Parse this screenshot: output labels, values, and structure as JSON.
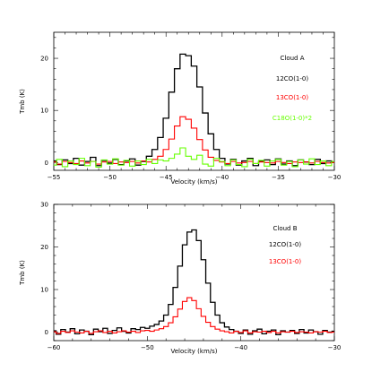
{
  "figure": {
    "panels": [
      {
        "id": "A"
      },
      {
        "id": "B"
      }
    ]
  },
  "chart_data": [
    {
      "type": "line",
      "step": true,
      "title": "Cloud A",
      "xlabel": "Velocity (km/s)",
      "ylabel": "Tmb (K)",
      "xlim": [
        -55,
        -30
      ],
      "ylim": [
        -1.5,
        25
      ],
      "xticks": [
        -55,
        -50,
        -45,
        -40,
        -35,
        -30
      ],
      "yticks": [
        0,
        10,
        20
      ],
      "grid": false,
      "legend": "upper-right, inside",
      "series": [
        {
          "name": "12CO(1-0)",
          "color": "#000000",
          "x": [
            -55.0,
            -54.5,
            -54.0,
            -53.5,
            -53.0,
            -52.5,
            -52.0,
            -51.5,
            -51.0,
            -50.5,
            -50.0,
            -49.5,
            -49.0,
            -48.5,
            -48.0,
            -47.5,
            -47.0,
            -46.5,
            -46.0,
            -45.5,
            -45.0,
            -44.5,
            -44.0,
            -43.5,
            -43.0,
            -42.5,
            -42.0,
            -41.5,
            -41.0,
            -40.5,
            -40.0,
            -39.5,
            -39.0,
            -38.5,
            -38.0,
            -37.5,
            -37.0,
            -36.5,
            -36.0,
            -35.5,
            -35.0,
            -34.5,
            -34.0,
            -33.5,
            -33.0,
            -32.5,
            -32.0,
            -31.5,
            -31.0,
            -30.5,
            -30.0
          ],
          "y": [
            0.3,
            -0.4,
            0.5,
            -0.2,
            0.8,
            -0.5,
            0.2,
            1.0,
            -0.6,
            0.4,
            -0.1,
            0.6,
            -0.4,
            0.3,
            0.7,
            -0.5,
            0.2,
            1.2,
            2.5,
            4.8,
            8.5,
            13.5,
            18.0,
            20.8,
            20.5,
            18.5,
            14.5,
            9.5,
            5.5,
            2.5,
            0.8,
            -0.3,
            0.6,
            -0.5,
            0.3,
            0.8,
            -0.6,
            0.2,
            0.5,
            -0.4,
            0.7,
            -0.3,
            0.3,
            -0.6,
            0.5,
            0.1,
            -0.4,
            0.6,
            -0.2,
            0.3,
            0.0
          ]
        },
        {
          "name": "13CO(1-0)",
          "color": "#ff0000",
          "x": [
            -55.0,
            -54.5,
            -54.0,
            -53.5,
            -53.0,
            -52.5,
            -52.0,
            -51.5,
            -51.0,
            -50.5,
            -50.0,
            -49.5,
            -49.0,
            -48.5,
            -48.0,
            -47.5,
            -47.0,
            -46.5,
            -46.0,
            -45.5,
            -45.0,
            -44.5,
            -44.0,
            -43.5,
            -43.0,
            -42.5,
            -42.0,
            -41.5,
            -41.0,
            -40.5,
            -40.0,
            -39.5,
            -39.0,
            -38.5,
            -38.0,
            -37.5,
            -37.0,
            -36.5,
            -36.0,
            -35.5,
            -35.0,
            -34.5,
            -34.0,
            -33.5,
            -33.0,
            -32.5,
            -32.0,
            -31.5,
            -31.0,
            -30.5,
            -30.0
          ],
          "y": [
            0.1,
            -0.3,
            0.2,
            0.0,
            -0.2,
            0.3,
            -0.1,
            0.2,
            -0.3,
            0.1,
            0.2,
            -0.2,
            0.1,
            0.0,
            0.2,
            -0.1,
            0.3,
            0.1,
            0.6,
            1.2,
            2.5,
            4.5,
            7.0,
            8.8,
            8.3,
            6.6,
            4.4,
            2.4,
            1.0,
            0.4,
            0.1,
            -0.2,
            0.2,
            -0.1,
            0.0,
            0.2,
            -0.2,
            0.1,
            0.0,
            -0.1,
            0.2,
            0.0,
            -0.2,
            0.1,
            0.0,
            0.1,
            -0.1,
            0.2,
            0.0,
            -0.1,
            0.0
          ]
        },
        {
          "name": "C18O(1-0)*2",
          "color": "#66ff00",
          "x": [
            -55.0,
            -54.5,
            -54.0,
            -53.5,
            -53.0,
            -52.5,
            -52.0,
            -51.5,
            -51.0,
            -50.5,
            -50.0,
            -49.5,
            -49.0,
            -48.5,
            -48.0,
            -47.5,
            -47.0,
            -46.5,
            -46.0,
            -45.5,
            -45.0,
            -44.5,
            -44.0,
            -43.5,
            -43.0,
            -42.5,
            -42.0,
            -41.5,
            -41.0,
            -40.5,
            -40.0,
            -39.5,
            -39.0,
            -38.5,
            -38.0,
            -37.5,
            -37.0,
            -36.5,
            -36.0,
            -35.5,
            -35.0,
            -34.5,
            -34.0,
            -33.5,
            -33.0,
            -32.5,
            -32.0,
            -31.5,
            -31.0,
            -30.5,
            -30.0
          ],
          "y": [
            -0.5,
            0.6,
            -0.8,
            0.3,
            -0.4,
            0.8,
            -0.6,
            0.2,
            -0.9,
            0.5,
            -0.3,
            0.7,
            -0.5,
            0.4,
            -0.7,
            0.3,
            -0.4,
            0.6,
            -0.2,
            0.5,
            0.3,
            0.8,
            1.6,
            2.8,
            1.2,
            0.6,
            1.4,
            -0.3,
            -0.7,
            0.8,
            0.2,
            -0.6,
            0.5,
            -0.4,
            -0.8,
            0.6,
            -0.2,
            0.4,
            -0.7,
            0.3,
            0.6,
            -0.5,
            0.2,
            -0.8,
            0.5,
            -0.3,
            0.7,
            -0.4,
            0.3,
            -0.6,
            0.2
          ]
        }
      ]
    },
    {
      "type": "line",
      "step": true,
      "title": "Cloud B",
      "xlabel": "Velocity (km/s)",
      "ylabel": "Tmb (K)",
      "xlim": [
        -60,
        -30
      ],
      "ylim": [
        -2,
        30
      ],
      "xticks": [
        -60,
        -50,
        -40,
        -30
      ],
      "yticks": [
        0,
        10,
        20,
        30
      ],
      "grid": false,
      "legend": "upper-right, inside",
      "series": [
        {
          "name": "12CO(1-0)",
          "color": "#000000",
          "x": [
            -60.0,
            -59.5,
            -59.0,
            -58.5,
            -58.0,
            -57.5,
            -57.0,
            -56.5,
            -56.0,
            -55.5,
            -55.0,
            -54.5,
            -54.0,
            -53.5,
            -53.0,
            -52.5,
            -52.0,
            -51.5,
            -51.0,
            -50.5,
            -50.0,
            -49.5,
            -49.0,
            -48.5,
            -48.0,
            -47.5,
            -47.0,
            -46.5,
            -46.0,
            -45.5,
            -45.0,
            -44.5,
            -44.0,
            -43.5,
            -43.0,
            -42.5,
            -42.0,
            -41.5,
            -41.0,
            -40.5,
            -40.0,
            -39.5,
            -39.0,
            -38.5,
            -38.0,
            -37.5,
            -37.0,
            -36.5,
            -36.0,
            -35.5,
            -35.0,
            -34.5,
            -34.0,
            -33.5,
            -33.0,
            -32.5,
            -32.0,
            -31.5,
            -31.0,
            -30.5,
            -30.0
          ],
          "y": [
            0.3,
            -0.5,
            0.6,
            0.0,
            0.8,
            -0.4,
            0.5,
            0.2,
            -0.6,
            0.7,
            0.1,
            0.9,
            -0.3,
            0.4,
            1.0,
            0.2,
            -0.2,
            0.8,
            0.6,
            1.1,
            0.9,
            1.4,
            1.8,
            2.6,
            4.0,
            6.5,
            10.5,
            15.5,
            20.5,
            23.5,
            24.0,
            21.5,
            17.0,
            11.5,
            7.0,
            4.0,
            2.2,
            1.2,
            0.6,
            0.2,
            -0.3,
            0.5,
            -0.5,
            0.3,
            0.7,
            -0.4,
            0.2,
            0.5,
            -0.6,
            0.3,
            0.0,
            0.4,
            -0.3,
            0.6,
            -0.2,
            0.5,
            0.1,
            -0.5,
            0.4,
            0.0,
            0.2
          ]
        },
        {
          "name": "13CO(1-0)",
          "color": "#ff0000",
          "x": [
            -60.0,
            -59.5,
            -59.0,
            -58.5,
            -58.0,
            -57.5,
            -57.0,
            -56.5,
            -56.0,
            -55.5,
            -55.0,
            -54.5,
            -54.0,
            -53.5,
            -53.0,
            -52.5,
            -52.0,
            -51.5,
            -51.0,
            -50.5,
            -50.0,
            -49.5,
            -49.0,
            -48.5,
            -48.0,
            -47.5,
            -47.0,
            -46.5,
            -46.0,
            -45.5,
            -45.0,
            -44.5,
            -44.0,
            -43.5,
            -43.0,
            -42.5,
            -42.0,
            -41.5,
            -41.0,
            -40.5,
            -40.0,
            -39.5,
            -39.0,
            -38.5,
            -38.0,
            -37.5,
            -37.0,
            -36.5,
            -36.0,
            -35.5,
            -35.0,
            -34.5,
            -34.0,
            -33.5,
            -33.0,
            -32.5,
            -32.0,
            -31.5,
            -31.0,
            -30.5,
            -30.0
          ],
          "y": [
            0.1,
            -0.3,
            0.2,
            -0.1,
            0.3,
            0.0,
            -0.2,
            0.2,
            -0.3,
            0.1,
            0.3,
            -0.1,
            0.2,
            -0.2,
            0.1,
            0.3,
            0.0,
            0.2,
            -0.1,
            0.3,
            0.4,
            0.2,
            0.5,
            0.8,
            1.3,
            2.2,
            3.6,
            5.4,
            7.2,
            8.1,
            7.4,
            5.5,
            3.7,
            2.3,
            1.3,
            0.7,
            0.3,
            0.1,
            -0.2,
            0.2,
            -0.1,
            0.3,
            -0.2,
            0.1,
            0.0,
            0.2,
            -0.1,
            0.2,
            -0.2,
            0.1,
            0.0,
            0.2,
            -0.1,
            0.1,
            0.0,
            -0.2,
            0.1,
            0.0,
            0.2,
            -0.1,
            0.0
          ]
        }
      ]
    }
  ]
}
